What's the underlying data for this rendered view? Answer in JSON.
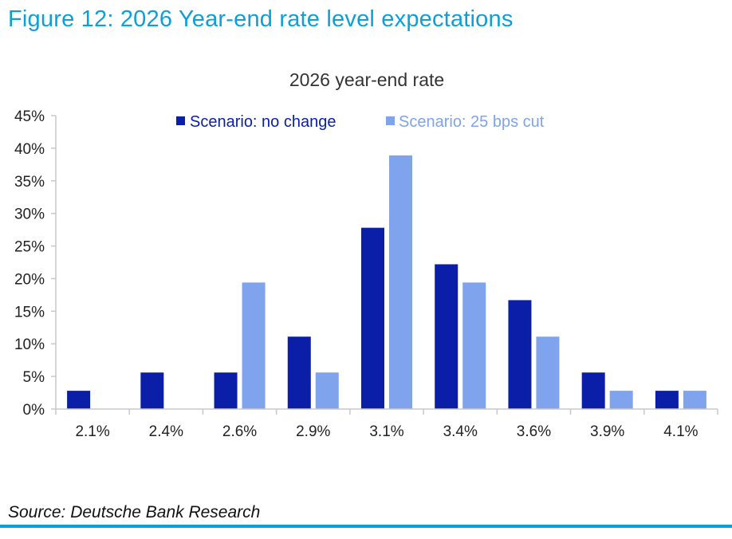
{
  "figure": {
    "title": "Figure 12: 2026 Year-end rate level expectations",
    "source": "Source: Deutsche Bank Research"
  },
  "colors": {
    "title": "#0c9fd8",
    "no_change": "#0b1ea8",
    "cut": "#7fa3ec",
    "axis": "#c8c8c8",
    "rule": "#0c9fd8"
  },
  "chart_data": {
    "type": "bar",
    "title": "2026 year-end rate",
    "xlabel": "",
    "ylabel": "",
    "categories": [
      "2.1%",
      "2.4%",
      "2.6%",
      "2.9%",
      "3.1%",
      "3.4%",
      "3.6%",
      "3.9%",
      "4.1%"
    ],
    "series": [
      {
        "name": "Scenario: no change",
        "values": [
          2.8,
          5.6,
          5.6,
          11.1,
          27.8,
          22.2,
          16.7,
          5.6,
          2.8
        ]
      },
      {
        "name": "Scenario: 25 bps cut",
        "values": [
          0,
          0,
          19.4,
          5.6,
          38.9,
          19.4,
          11.1,
          2.8,
          2.8
        ]
      }
    ],
    "ylim": [
      0,
      45
    ],
    "yticks": [
      "0%",
      "5%",
      "10%",
      "15%",
      "20%",
      "25%",
      "30%",
      "35%",
      "40%",
      "45%"
    ],
    "grid": false,
    "legend": "top"
  }
}
